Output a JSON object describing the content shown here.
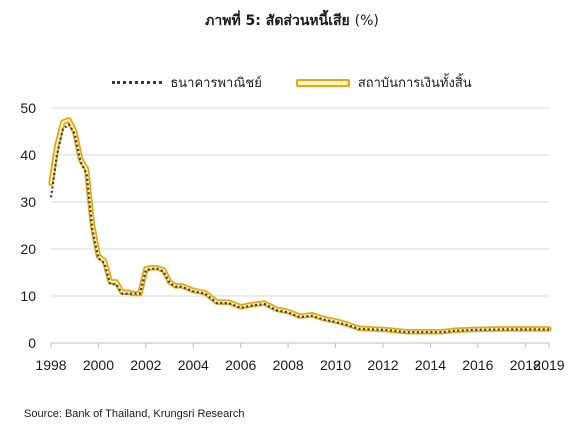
{
  "title": "ภาพที่ 5: สัดส่วนหนี้เสีย",
  "title_unit": "(%)",
  "source": "Source: Bank of Thailand, Krungsri Research",
  "chart_data": {
    "type": "line",
    "xlim": [
      1998,
      2019
    ],
    "ylim": [
      0,
      50
    ],
    "xticks": [
      1998,
      2000,
      2002,
      2004,
      2006,
      2008,
      2010,
      2012,
      2014,
      2016,
      2018,
      2019
    ],
    "yticks": [
      0,
      10,
      20,
      30,
      40,
      50
    ],
    "grid": "horizontal",
    "legend_position": "top-center",
    "series": [
      {
        "name": "ธนาคารพาณิชย์",
        "style": "dotted",
        "color": "#3a3a3a",
        "x": [
          1998.0,
          1998.25,
          1998.5,
          1998.75,
          1999.0,
          1999.25,
          1999.5,
          1999.75,
          2000.0,
          2000.25,
          2000.5,
          2000.75,
          2001.0,
          2001.25,
          2001.5,
          2001.75,
          2002.0,
          2002.25,
          2002.5,
          2002.75,
          2003.0,
          2003.25,
          2003.5,
          2003.75,
          2004.0,
          2004.5,
          2005.0,
          2005.5,
          2006.0,
          2006.5,
          2007.0,
          2007.5,
          2008.0,
          2008.5,
          2009.0,
          2009.5,
          2010.0,
          2010.5,
          2011.0,
          2012.0,
          2013.0,
          2014.0,
          2014.5,
          2015.0,
          2016.0,
          2017.0,
          2018.0,
          2019.0
        ],
        "y": [
          31.0,
          40.0,
          45.5,
          46.5,
          44.5,
          38.5,
          36.0,
          24.0,
          18.0,
          17.0,
          12.5,
          12.5,
          10.5,
          10.5,
          10.5,
          10.5,
          15.5,
          15.8,
          15.8,
          15.2,
          12.8,
          12.0,
          12.0,
          11.5,
          11.0,
          10.5,
          8.5,
          8.5,
          7.5,
          8.0,
          8.3,
          7.0,
          6.5,
          5.5,
          5.8,
          5.0,
          4.5,
          3.8,
          3.0,
          2.8,
          2.3,
          2.3,
          2.3,
          2.6,
          2.8,
          2.9,
          2.9,
          2.9
        ]
      },
      {
        "name": "สถาบันการเงินทั้งสิ้น",
        "style": "double",
        "color": "#e5a812",
        "x": [
          1998.0,
          1998.25,
          1998.5,
          1998.75,
          1999.0,
          1999.25,
          1999.5,
          1999.75,
          2000.0,
          2000.25,
          2000.5,
          2000.75,
          2001.0,
          2001.25,
          2001.5,
          2001.75,
          2002.0,
          2002.25,
          2002.5,
          2002.75,
          2003.0,
          2003.25,
          2003.5,
          2003.75,
          2004.0,
          2004.5,
          2005.0,
          2005.5,
          2006.0,
          2006.5,
          2007.0,
          2007.5,
          2008.0,
          2008.5,
          2009.0,
          2009.5,
          2010.0,
          2010.5,
          2011.0,
          2012.0,
          2013.0,
          2014.0,
          2014.5,
          2015.0,
          2016.0,
          2017.0,
          2018.0,
          2019.0
        ],
        "y": [
          34.0,
          42.0,
          47.0,
          47.5,
          45.0,
          39.0,
          37.0,
          25.0,
          18.5,
          17.5,
          13.0,
          13.0,
          10.8,
          10.8,
          10.5,
          10.5,
          15.8,
          16.0,
          16.0,
          15.5,
          13.0,
          12.2,
          12.2,
          11.7,
          11.2,
          10.7,
          8.7,
          8.7,
          7.7,
          8.2,
          8.5,
          7.2,
          6.7,
          5.7,
          6.0,
          5.2,
          4.7,
          4.0,
          3.1,
          2.9,
          2.4,
          2.4,
          2.4,
          2.7,
          2.9,
          3.0,
          3.0,
          3.0
        ]
      }
    ]
  }
}
